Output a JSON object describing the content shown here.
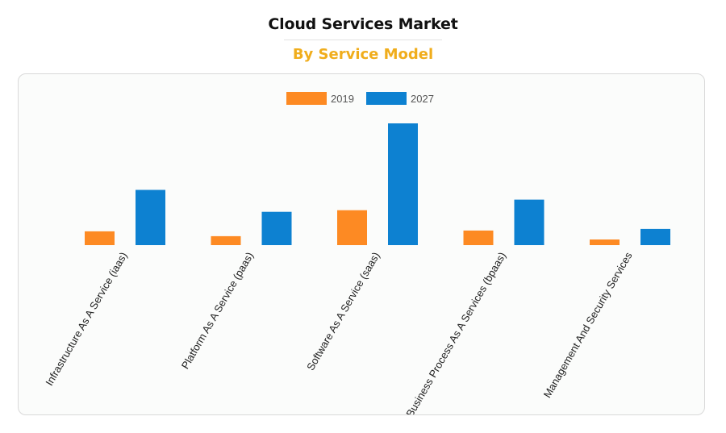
{
  "header": {
    "title": "Cloud Services Market",
    "subtitle": "By Service Model"
  },
  "colors": {
    "subtitle": "#f0ad1c",
    "series_2019": "#fd8a23",
    "series_2027": "#0d81d1"
  },
  "chart_data": {
    "type": "bar",
    "categories": [
      "Infrastructure As A Service (iaas)",
      "Platform As A Service (paas)",
      "Software As A Service (saas)",
      "Business Process As A Services (bpaas)",
      "Management And Security Services"
    ],
    "series": [
      {
        "name": "2019",
        "color": "#fd8a23",
        "values": [
          17,
          11,
          43,
          18,
          7
        ]
      },
      {
        "name": "2027",
        "color": "#0d81d1",
        "values": [
          68,
          41,
          150,
          56,
          20
        ]
      }
    ],
    "ylim": [
      0,
      150
    ],
    "grid": false,
    "legend": "top-center",
    "title": "",
    "xlabel": "",
    "ylabel": ""
  }
}
